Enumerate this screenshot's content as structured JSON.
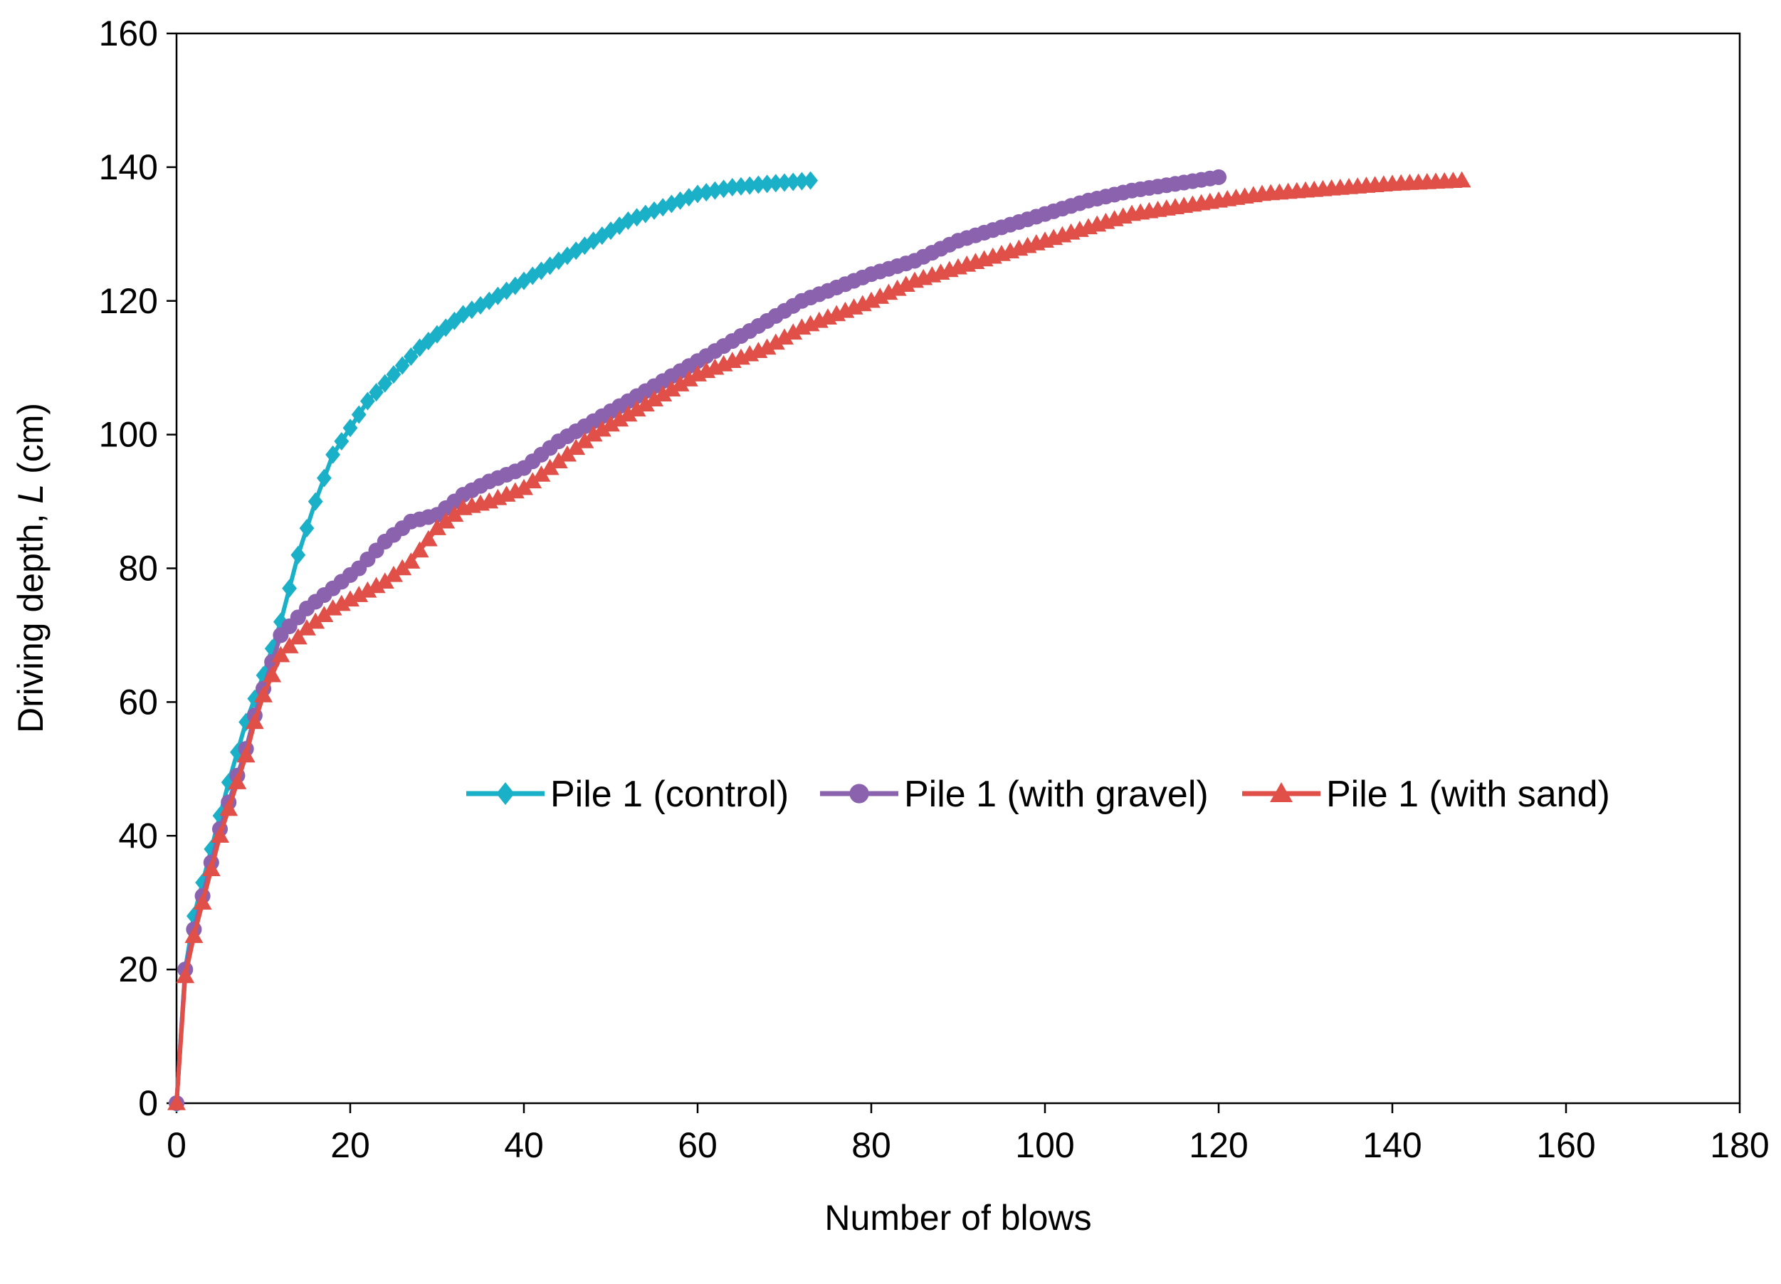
{
  "chart_data": {
    "type": "line",
    "title": "",
    "xlabel": "Number of blows",
    "ylabel_prefix": "Driving depth, ",
    "ylabel_var": "L",
    "ylabel_suffix": " (cm)",
    "xlim": [
      0,
      180
    ],
    "ylim": [
      0,
      160
    ],
    "xticks": [
      0,
      20,
      40,
      60,
      80,
      100,
      120,
      140,
      160,
      180
    ],
    "yticks": [
      0,
      20,
      40,
      60,
      80,
      100,
      120,
      140,
      160
    ],
    "grid": false,
    "legend_position": "center-right",
    "series": [
      {
        "name": "Pile 1 (control)",
        "color": "#1ab0c8",
        "marker": "diamond",
        "anchors": [
          [
            0,
            0
          ],
          [
            1,
            20
          ],
          [
            2,
            28
          ],
          [
            3,
            33
          ],
          [
            4,
            38
          ],
          [
            5,
            43
          ],
          [
            6,
            48
          ],
          [
            8,
            57
          ],
          [
            10,
            64
          ],
          [
            12,
            72
          ],
          [
            14,
            82
          ],
          [
            16,
            90
          ],
          [
            18,
            97
          ],
          [
            20,
            101
          ],
          [
            22,
            105
          ],
          [
            25,
            109
          ],
          [
            28,
            113
          ],
          [
            30,
            115
          ],
          [
            33,
            118
          ],
          [
            36,
            120
          ],
          [
            40,
            123
          ],
          [
            44,
            126
          ],
          [
            48,
            129
          ],
          [
            52,
            132
          ],
          [
            56,
            134
          ],
          [
            60,
            136
          ],
          [
            64,
            137
          ],
          [
            68,
            137.5
          ],
          [
            73,
            138
          ]
        ]
      },
      {
        "name": "Pile 1 (with gravel)",
        "color": "#8b62ae",
        "marker": "circle",
        "anchors": [
          [
            0,
            0
          ],
          [
            1,
            20
          ],
          [
            2,
            26
          ],
          [
            3,
            31
          ],
          [
            4,
            36
          ],
          [
            5,
            41
          ],
          [
            6,
            45
          ],
          [
            7,
            49
          ],
          [
            8,
            53
          ],
          [
            9,
            58
          ],
          [
            10,
            62
          ],
          [
            11,
            66
          ],
          [
            12,
            70
          ],
          [
            15,
            74
          ],
          [
            18,
            77
          ],
          [
            21,
            80
          ],
          [
            24,
            84
          ],
          [
            27,
            87
          ],
          [
            30,
            88
          ],
          [
            33,
            91
          ],
          [
            36,
            93
          ],
          [
            40,
            95
          ],
          [
            44,
            99
          ],
          [
            48,
            102
          ],
          [
            52,
            105
          ],
          [
            56,
            108
          ],
          [
            60,
            111
          ],
          [
            64,
            114
          ],
          [
            68,
            117
          ],
          [
            72,
            120
          ],
          [
            76,
            122
          ],
          [
            80,
            124
          ],
          [
            85,
            126
          ],
          [
            90,
            129
          ],
          [
            95,
            131
          ],
          [
            100,
            133
          ],
          [
            105,
            135
          ],
          [
            110,
            136.5
          ],
          [
            115,
            137.5
          ],
          [
            120,
            138.5
          ]
        ]
      },
      {
        "name": "Pile 1 (with sand)",
        "color": "#e05048",
        "marker": "triangle",
        "anchors": [
          [
            0,
            0
          ],
          [
            1,
            19
          ],
          [
            2,
            25
          ],
          [
            3,
            30
          ],
          [
            4,
            35
          ],
          [
            5,
            40
          ],
          [
            6,
            44
          ],
          [
            7,
            48
          ],
          [
            8,
            52
          ],
          [
            9,
            57
          ],
          [
            10,
            61
          ],
          [
            11,
            64
          ],
          [
            12,
            67
          ],
          [
            15,
            71
          ],
          [
            18,
            74
          ],
          [
            21,
            76
          ],
          [
            24,
            78
          ],
          [
            27,
            81
          ],
          [
            30,
            86
          ],
          [
            33,
            89
          ],
          [
            36,
            90
          ],
          [
            40,
            92
          ],
          [
            44,
            96
          ],
          [
            48,
            100
          ],
          [
            52,
            103
          ],
          [
            56,
            106
          ],
          [
            60,
            109
          ],
          [
            64,
            111
          ],
          [
            68,
            113
          ],
          [
            72,
            116
          ],
          [
            76,
            118
          ],
          [
            80,
            120
          ],
          [
            85,
            123
          ],
          [
            90,
            125
          ],
          [
            95,
            127
          ],
          [
            100,
            129
          ],
          [
            105,
            131
          ],
          [
            110,
            133
          ],
          [
            115,
            134
          ],
          [
            120,
            135
          ],
          [
            125,
            136
          ],
          [
            130,
            136.5
          ],
          [
            135,
            137
          ],
          [
            140,
            137.5
          ],
          [
            148,
            138
          ]
        ]
      }
    ]
  }
}
